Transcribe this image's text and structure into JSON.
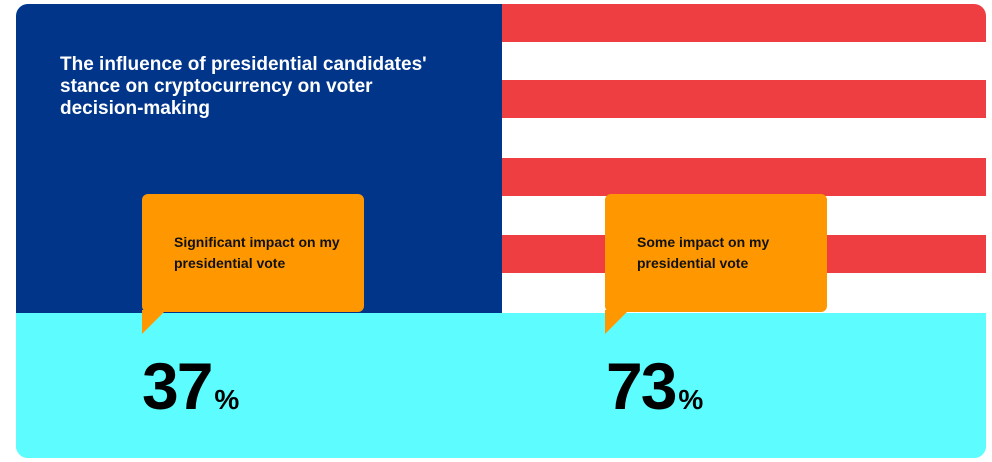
{
  "chart_data": {
    "type": "bar",
    "title": "The influence of presidential candidates' stance on cryptocurrency on voter decision-making",
    "categories": [
      "Significant impact on my presidential vote",
      "Some impact on my presidential vote"
    ],
    "series": [
      {
        "values": [
          37,
          73
        ]
      }
    ],
    "unit_suffix": "%",
    "value_labels": [
      "37",
      "73"
    ]
  },
  "colors": {
    "panel_blue": "#00358a",
    "flag_red": "#ef3e42",
    "flag_white": "#ffffff",
    "cyan_band": "#5cfcff",
    "bubble_orange": "#ff9800",
    "text_dark": "#000000",
    "text_light": "#ffffff"
  }
}
